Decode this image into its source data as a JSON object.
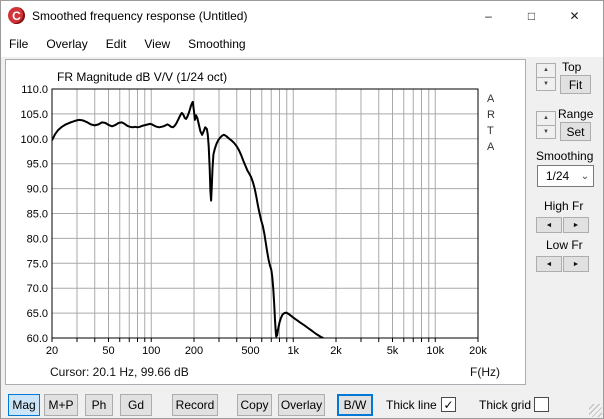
{
  "window": {
    "title": "Smoothed frequency response (Untitled)",
    "icon_letter": "C"
  },
  "icons": {
    "minimize": "–",
    "maximize": "□",
    "close": "✕",
    "spin_up": "▲",
    "spin_down": "▼",
    "arrow_left": "◄",
    "arrow_right": "►",
    "check": "✓",
    "chevron_down": "⌄"
  },
  "colors": {
    "accent": "#0078d7",
    "curve": "#000000",
    "grid": "#aaaaaa",
    "logo_red": "#d03438",
    "active_button_bg": "#cce4f7"
  },
  "menu": {
    "items": [
      "File",
      "Overlay",
      "Edit",
      "View",
      "Smoothing"
    ]
  },
  "chart": {
    "watermark": "ARTA",
    "cursor_readout": "Cursor: 20.1 Hz, 99.66 dB",
    "x_axis_label": "F(Hz)"
  },
  "chart_data": {
    "type": "line",
    "title": "FR Magnitude dB V/V (1/24 oct)",
    "x_scale": "log",
    "xlim": [
      20,
      20000
    ],
    "ylim": [
      60,
      110
    ],
    "grid": true,
    "grid_color": "#aaaaaa",
    "x_gridlines": [
      20,
      30,
      40,
      50,
      60,
      70,
      80,
      90,
      100,
      200,
      300,
      400,
      500,
      600,
      700,
      800,
      900,
      1000,
      2000,
      3000,
      4000,
      5000,
      6000,
      7000,
      8000,
      9000,
      10000,
      20000
    ],
    "x_tick_labels": [
      {
        "f": 20,
        "t": "20"
      },
      {
        "f": 50,
        "t": "50"
      },
      {
        "f": 100,
        "t": "100"
      },
      {
        "f": 200,
        "t": "200"
      },
      {
        "f": 500,
        "t": "500"
      },
      {
        "f": 1000,
        "t": "1k"
      },
      {
        "f": 2000,
        "t": "2k"
      },
      {
        "f": 5000,
        "t": "5k"
      },
      {
        "f": 10000,
        "t": "10k"
      },
      {
        "f": 20000,
        "t": "20k"
      }
    ],
    "y_ticks": [
      60,
      65,
      70,
      75,
      80,
      85,
      90,
      95,
      100,
      105,
      110
    ],
    "y_tick_labels": [
      "60.0",
      "65.0",
      "70.0",
      "75.0",
      "80.0",
      "85.0",
      "90.0",
      "95.0",
      "100.0",
      "105.0",
      "110.0"
    ],
    "series": [
      {
        "name": "FR magnitude",
        "color": "#000000",
        "thick": true,
        "points": [
          [
            20,
            99.7
          ],
          [
            21,
            100.9
          ],
          [
            22,
            101.7
          ],
          [
            23.5,
            102.4
          ],
          [
            25,
            102.9
          ],
          [
            27,
            103.3
          ],
          [
            29,
            103.6
          ],
          [
            31,
            103.8
          ],
          [
            33,
            103.7
          ],
          [
            35,
            103.4
          ],
          [
            37.5,
            102.9
          ],
          [
            40,
            102.7
          ],
          [
            42.5,
            102.9
          ],
          [
            45,
            103.3
          ],
          [
            47.5,
            103.2
          ],
          [
            50,
            102.8
          ],
          [
            53,
            102.5
          ],
          [
            56,
            102.8
          ],
          [
            59,
            103.2
          ],
          [
            62,
            103.3
          ],
          [
            65,
            103.0
          ],
          [
            68,
            102.6
          ],
          [
            71,
            102.4
          ],
          [
            74,
            102.3
          ],
          [
            77,
            102.4
          ],
          [
            80,
            102.3
          ],
          [
            83,
            102.4
          ],
          [
            86,
            102.6
          ],
          [
            89,
            102.7
          ],
          [
            92,
            102.8
          ],
          [
            95,
            102.9
          ],
          [
            98,
            103.0
          ],
          [
            101,
            102.9
          ],
          [
            104,
            102.7
          ],
          [
            107,
            102.5
          ],
          [
            110,
            102.4
          ],
          [
            114,
            102.3
          ],
          [
            118,
            102.4
          ],
          [
            122,
            102.5
          ],
          [
            126,
            102.7
          ],
          [
            130,
            102.9
          ],
          [
            134,
            102.7
          ],
          [
            138,
            102.4
          ],
          [
            142,
            102.3
          ],
          [
            146,
            102.6
          ],
          [
            150,
            103.1
          ],
          [
            155,
            103.9
          ],
          [
            160,
            104.7
          ],
          [
            164,
            105.2
          ],
          [
            168,
            104.9
          ],
          [
            172,
            104.2
          ],
          [
            176,
            104.0
          ],
          [
            180,
            104.5
          ],
          [
            185,
            105.4
          ],
          [
            190,
            106.5
          ],
          [
            194,
            107.2
          ],
          [
            196,
            107.4
          ],
          [
            200,
            105.5
          ],
          [
            203,
            103.8
          ],
          [
            207,
            104.7
          ],
          [
            211,
            104.2
          ],
          [
            216,
            103.0
          ],
          [
            222,
            101.5
          ],
          [
            228,
            100.8
          ],
          [
            234,
            101.5
          ],
          [
            240,
            102.3
          ],
          [
            246,
            102.0
          ],
          [
            250,
            100.8
          ],
          [
            254,
            98.5
          ],
          [
            258,
            94.0
          ],
          [
            261,
            89.5
          ],
          [
            264,
            87.6
          ],
          [
            267,
            90.5
          ],
          [
            270,
            94.0
          ],
          [
            274,
            96.8
          ],
          [
            280,
            98.0
          ],
          [
            288,
            99.0
          ],
          [
            296,
            99.7
          ],
          [
            305,
            100.2
          ],
          [
            315,
            100.6
          ],
          [
            325,
            100.8
          ],
          [
            335,
            100.6
          ],
          [
            345,
            100.3
          ],
          [
            355,
            100.0
          ],
          [
            370,
            99.6
          ],
          [
            385,
            99.1
          ],
          [
            400,
            98.5
          ],
          [
            415,
            97.7
          ],
          [
            430,
            96.7
          ],
          [
            445,
            95.6
          ],
          [
            460,
            94.6
          ],
          [
            475,
            93.7
          ],
          [
            490,
            93.0
          ],
          [
            505,
            92.3
          ],
          [
            520,
            91.3
          ],
          [
            535,
            90.0
          ],
          [
            550,
            88.3
          ],
          [
            565,
            86.5
          ],
          [
            580,
            84.9
          ],
          [
            595,
            83.6
          ],
          [
            610,
            82.5
          ],
          [
            625,
            81.0
          ],
          [
            640,
            79.2
          ],
          [
            655,
            77.3
          ],
          [
            670,
            75.7
          ],
          [
            685,
            74.6
          ],
          [
            700,
            73.7
          ],
          [
            712,
            72.2
          ],
          [
            724,
            69.8
          ],
          [
            734,
            66.8
          ],
          [
            744,
            63.6
          ],
          [
            752,
            61.4
          ],
          [
            758,
            60.3
          ],
          [
            764,
            61.5
          ],
          [
            769,
            60.5
          ],
          [
            776,
            61.1
          ],
          [
            786,
            62.1
          ],
          [
            800,
            63.1
          ],
          [
            818,
            64.0
          ],
          [
            840,
            64.7
          ],
          [
            865,
            65.0
          ],
          [
            895,
            65.1
          ],
          [
            930,
            64.8
          ],
          [
            970,
            64.4
          ],
          [
            1010,
            64.0
          ],
          [
            1060,
            63.6
          ],
          [
            1120,
            63.1
          ],
          [
            1190,
            62.6
          ],
          [
            1270,
            62.0
          ],
          [
            1360,
            61.4
          ],
          [
            1450,
            60.8
          ],
          [
            1550,
            60.3
          ],
          [
            1620,
            60.0
          ],
          [
            1680,
            59.6
          ]
        ]
      }
    ]
  },
  "side_panel": {
    "top_label": "Top",
    "fit_button": "Fit",
    "range_label": "Range",
    "set_button": "Set",
    "smoothing_label": "Smoothing",
    "smoothing_value": "1/24",
    "high_fr_label": "High Fr",
    "low_fr_label": "Low Fr"
  },
  "toolbar": {
    "buttons": [
      {
        "label": "Mag",
        "active": true
      },
      {
        "label": "M+P",
        "active": false
      },
      {
        "label": "Ph",
        "active": false
      },
      {
        "label": "Gd",
        "active": false
      },
      {
        "label": "Record",
        "active": false
      },
      {
        "label": "Copy",
        "active": false
      },
      {
        "label": "Overlay",
        "active": false
      },
      {
        "label": "B/W",
        "active": false,
        "focused": true
      }
    ],
    "thick_line_label": "Thick line",
    "thick_line_checked": true,
    "thick_grid_label": "Thick grid",
    "thick_grid_checked": false
  }
}
